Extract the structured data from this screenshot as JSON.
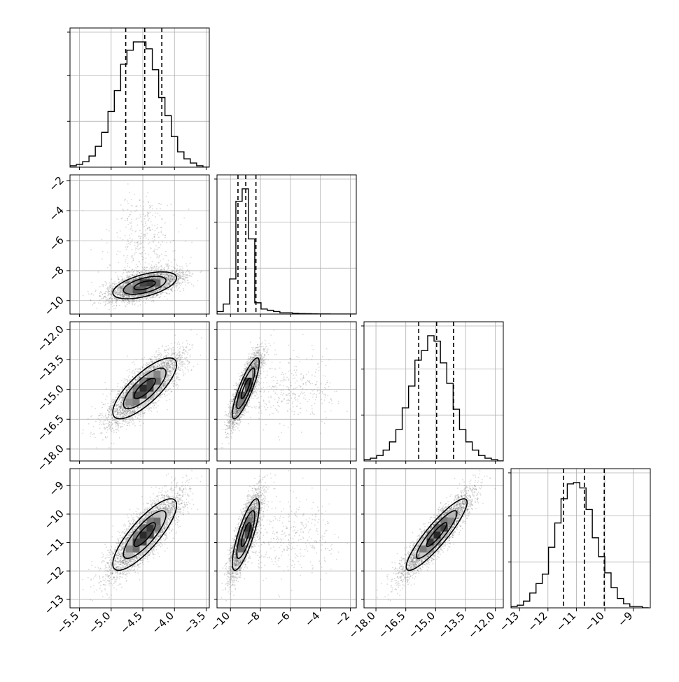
{
  "chart_data": {
    "type": "corner",
    "parameters": 4,
    "axes_ranges": [
      [
        -5.65,
        -3.45
      ],
      [
        -10.9,
        -1.6
      ],
      [
        -18.6,
        -11.6
      ],
      [
        -13.3,
        -8.4
      ]
    ],
    "x_ticks": [
      [
        "-5.5",
        "-5.0",
        "-4.5",
        "-4.0",
        "-3.5"
      ],
      [
        "-10",
        "-8",
        "-6",
        "-4",
        "-2"
      ],
      [
        "-18.0",
        "-16.5",
        "-15.0",
        "-13.5",
        "-12.0"
      ],
      [
        "-13",
        "-12",
        "-11",
        "-10",
        "-9"
      ]
    ],
    "y_ticks": [
      [],
      [
        "-2",
        "-4",
        "-6",
        "-8",
        "-10"
      ],
      [
        "-12.0",
        "-13.5",
        "-15.0",
        "-16.5",
        "-18.0"
      ],
      [
        "-9",
        "-10",
        "-11",
        "-12",
        "-13"
      ]
    ],
    "tick_values_x": [
      [
        -5.5,
        -5.0,
        -4.5,
        -4.0,
        -3.5
      ],
      [
        -10,
        -8,
        -6,
        -4,
        -2
      ],
      [
        -18.0,
        -16.5,
        -15.0,
        -13.5,
        -12.0
      ],
      [
        -13,
        -12,
        -11,
        -10,
        -9
      ]
    ],
    "tick_values_y": [
      [],
      [
        -2,
        -4,
        -6,
        -8,
        -10
      ],
      [
        -12.0,
        -13.5,
        -15.0,
        -16.5,
        -18.0
      ],
      [
        -9,
        -10,
        -11,
        -12,
        -13
      ]
    ],
    "quantiles": [
      [
        -4.77,
        -4.47,
        -4.2
      ],
      [
        -9.5,
        -8.98,
        -8.3
      ],
      [
        -15.85,
        -14.95,
        -14.1
      ],
      [
        -11.45,
        -10.72,
        -10.02
      ]
    ],
    "histograms": [
      {
        "edges_start": -5.65,
        "bin_width": 0.1,
        "counts": [
          1,
          2,
          4,
          8,
          15,
          25,
          40,
          55,
          74,
          84,
          90,
          90,
          85,
          70,
          50,
          37,
          22,
          11,
          6,
          3,
          1,
          0
        ]
      },
      {
        "edges_start": -10.9,
        "bin_width": 0.42,
        "counts": [
          2,
          8,
          28,
          90,
          100,
          60,
          9,
          4,
          3,
          2,
          1,
          1,
          0.6,
          0.4,
          0.3,
          0.2,
          0.1,
          0.1,
          0,
          0,
          0,
          0
        ]
      },
      {
        "edges_start": -18.6,
        "bin_width": 0.32,
        "counts": [
          1,
          2,
          4,
          8,
          14,
          23,
          39,
          55,
          74,
          81,
          92,
          88,
          72,
          57,
          38,
          23,
          14,
          8,
          4,
          2,
          1,
          0
        ]
      },
      {
        "edges_start": -13.3,
        "bin_width": 0.22,
        "counts": [
          1,
          2,
          5,
          11,
          18,
          25,
          45,
          63,
          81,
          92,
          93,
          89,
          73,
          52,
          38,
          26,
          15,
          7,
          3,
          1,
          1,
          0
        ]
      }
    ],
    "distribution": {
      "mean": [
        -4.47,
        -8.98,
        -14.95,
        -10.72
      ],
      "sd": [
        0.28,
        0.5,
        0.85,
        0.7
      ],
      "corr": [
        [
          1.0,
          0.55,
          0.78,
          0.82
        ],
        [
          0.55,
          1.0,
          0.85,
          0.8
        ],
        [
          0.78,
          0.85,
          1.0,
          0.9
        ],
        [
          0.82,
          0.8,
          0.9,
          1.0
        ]
      ],
      "tail_x1": {
        "fraction": 0.1,
        "scale": 1.3
      }
    },
    "grid": true
  }
}
